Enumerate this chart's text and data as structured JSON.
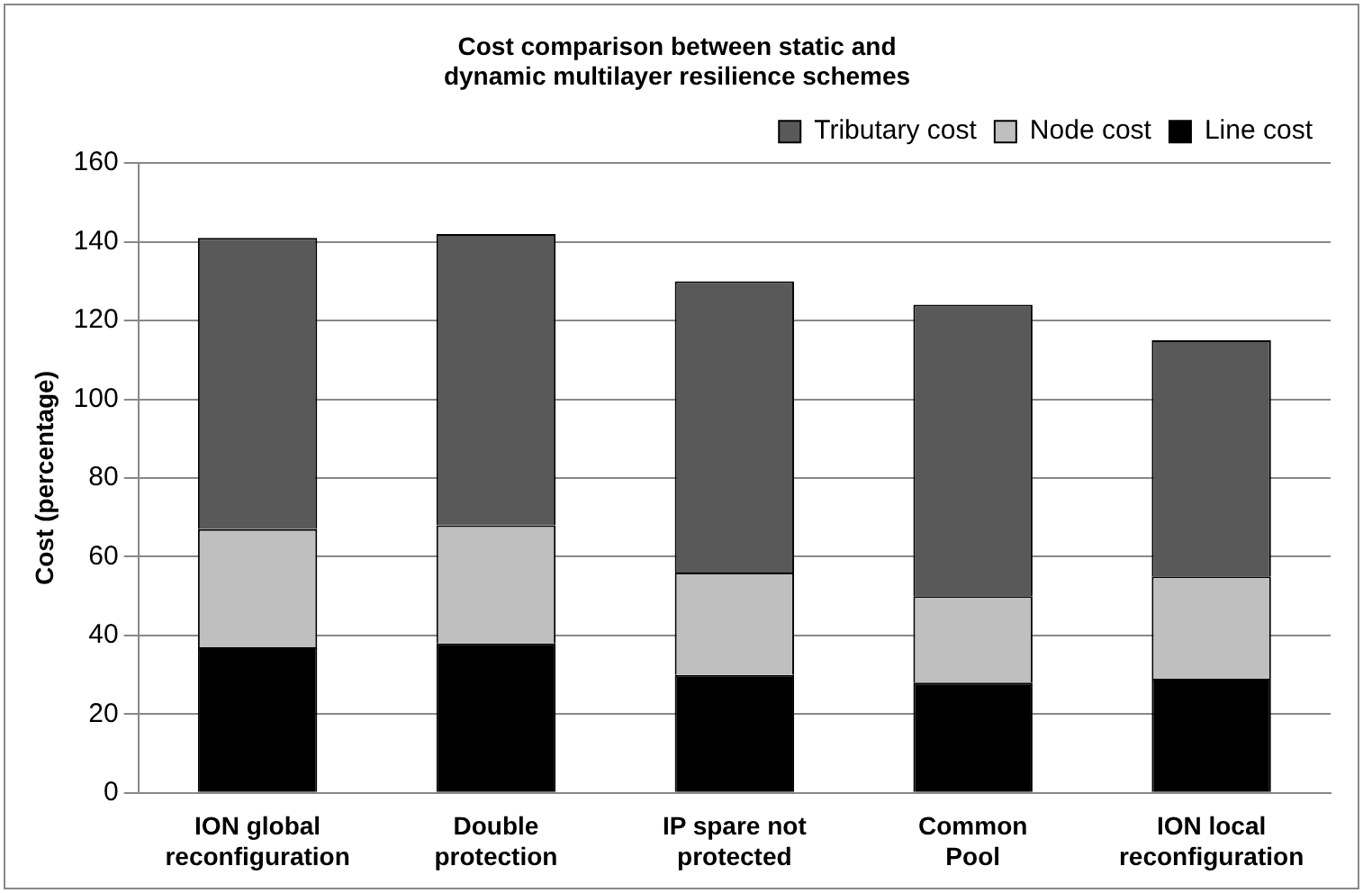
{
  "chart_data": {
    "type": "bar",
    "title": "Cost comparison between static and dynamic multilayer resilience schemes",
    "ylabel": "Cost (percentage)",
    "categories": [
      "ION global reconfiguration",
      "Double protection",
      "IP spare not protected",
      "Common Pool",
      "ION local reconfiguration"
    ],
    "stacked": true,
    "series": [
      {
        "name": "Line cost",
        "color": "#000000",
        "values": [
          37,
          38,
          30,
          28,
          29
        ]
      },
      {
        "name": "Node cost",
        "color": "#bfbfbf",
        "values": [
          30,
          30,
          26,
          22,
          26
        ]
      },
      {
        "name": "Tributary cost",
        "color": "#595959",
        "values": [
          74,
          74,
          74,
          74,
          60
        ]
      }
    ],
    "ylim": [
      0,
      160
    ],
    "yticks": [
      0,
      20,
      40,
      60,
      80,
      100,
      120,
      140,
      160
    ],
    "grid": "y",
    "legend": "top right"
  }
}
